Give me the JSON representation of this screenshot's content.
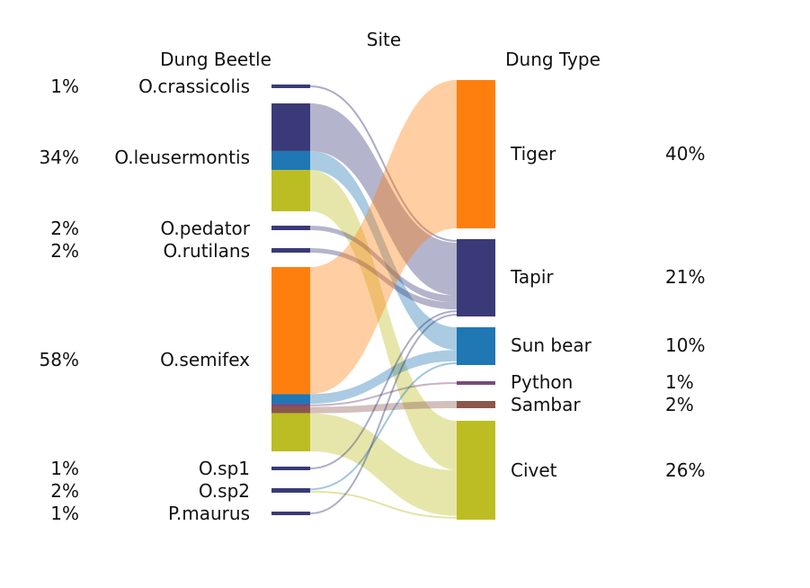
{
  "chart_data": {
    "type": "sankey",
    "title": "Site",
    "left_header": "Dung Beetle",
    "right_header": "Dung Type",
    "colors": {
      "navy": "#3a3a78",
      "blue": "#1f77b4",
      "olive": "#bcbd22",
      "orange": "#ff7f0e",
      "purple": "#7b4a7b",
      "brown": "#8c564b"
    },
    "sources": [
      {
        "name": "O.crassicolis",
        "pct": "1%"
      },
      {
        "name": "O.leusermontis",
        "pct": "34%"
      },
      {
        "name": "O.pedator",
        "pct": "2%"
      },
      {
        "name": "O.rutilans",
        "pct": "2%"
      },
      {
        "name": "O.semifex",
        "pct": "58%"
      },
      {
        "name": "O.sp1",
        "pct": "1%"
      },
      {
        "name": "O.sp2",
        "pct": "2%"
      },
      {
        "name": "P.maurus",
        "pct": "1%"
      }
    ],
    "targets": [
      {
        "name": "Tiger",
        "pct": "40%",
        "color": "#ff7f0e"
      },
      {
        "name": "Tapir",
        "pct": "21%",
        "color": "#3a3a78"
      },
      {
        "name": "Sun bear",
        "pct": "10%",
        "color": "#1f77b4"
      },
      {
        "name": "Python",
        "pct": "1%",
        "color": "#7b4a7b"
      },
      {
        "name": "Sambar",
        "pct": "2%",
        "color": "#8c564b"
      },
      {
        "name": "Civet",
        "pct": "26%",
        "color": "#bcbd22"
      }
    ],
    "links": [
      {
        "source": "O.crassicolis",
        "target": "Tapir",
        "value": 1.0
      },
      {
        "source": "O.leusermontis",
        "target": "Tapir",
        "value": 15.0
      },
      {
        "source": "O.leusermontis",
        "target": "Sun bear",
        "value": 6.0
      },
      {
        "source": "O.leusermontis",
        "target": "Civet",
        "value": 13.0
      },
      {
        "source": "O.pedator",
        "target": "Tapir",
        "value": 2.0
      },
      {
        "source": "O.rutilans",
        "target": "Tapir",
        "value": 2.0
      },
      {
        "source": "O.semifex",
        "target": "Tiger",
        "value": 40.0
      },
      {
        "source": "O.semifex",
        "target": "Sun bear",
        "value": 3.0
      },
      {
        "source": "O.semifex",
        "target": "Python",
        "value": 1.0
      },
      {
        "source": "O.semifex",
        "target": "Sambar",
        "value": 2.0
      },
      {
        "source": "O.semifex",
        "target": "Civet",
        "value": 12.0
      },
      {
        "source": "O.sp1",
        "target": "Tapir",
        "value": 1.0
      },
      {
        "source": "O.sp2",
        "target": "Sun bear",
        "value": 1.0
      },
      {
        "source": "O.sp2",
        "target": "Civet",
        "value": 1.0
      },
      {
        "source": "P.maurus",
        "target": "Tapir",
        "value": 1.0
      }
    ]
  }
}
